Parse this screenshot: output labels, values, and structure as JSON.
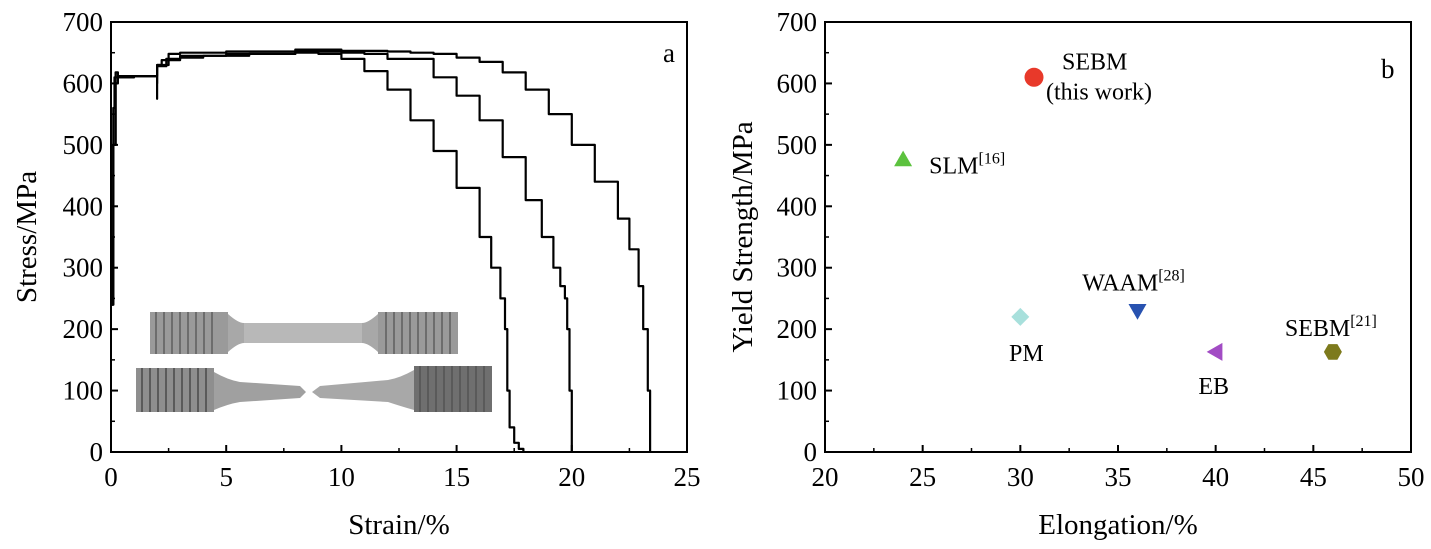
{
  "chart_data": [
    {
      "panel": "a",
      "type": "line",
      "xlabel": "Strain/%",
      "ylabel": "Stress/MPa",
      "xlim": [
        0,
        25
      ],
      "ylim": [
        0,
        700
      ],
      "xticks": [
        0,
        5,
        10,
        15,
        20,
        25
      ],
      "yticks": [
        0,
        100,
        200,
        300,
        400,
        500,
        600,
        700
      ],
      "grid": false,
      "inset_image": "tensile specimens photo: intact and fractured",
      "series": [
        {
          "x": [
            0,
            0.05,
            0.1,
            0.15,
            0.2,
            0.3,
            0.5,
            1,
            1.9,
            2.0,
            2.0,
            2.2,
            3,
            4,
            6,
            8,
            9,
            10,
            11,
            12,
            13,
            14,
            15,
            16,
            16.5,
            16.9,
            17.1,
            17.2,
            17.3,
            17.5,
            17.7,
            17.9
          ],
          "y": [
            240,
            350,
            560,
            610,
            618,
            612,
            612,
            612,
            612,
            612,
            630,
            638,
            642,
            645,
            648,
            650,
            648,
            640,
            620,
            590,
            540,
            490,
            430,
            350,
            300,
            250,
            200,
            100,
            40,
            15,
            5,
            0
          ]
        },
        {
          "x": [
            0,
            0.1,
            0.2,
            0.3,
            1,
            1.9,
            2.0,
            2.0,
            2.4,
            3,
            5,
            8,
            10,
            11,
            12,
            14,
            15,
            16,
            17,
            18,
            18.7,
            19.2,
            19.5,
            19.7,
            19.8,
            19.9,
            20.0
          ],
          "y": [
            240,
            500,
            600,
            610,
            612,
            612,
            600,
            628,
            640,
            645,
            648,
            652,
            650,
            648,
            640,
            610,
            580,
            540,
            480,
            410,
            350,
            300,
            270,
            250,
            200,
            100,
            0
          ]
        },
        {
          "x": [
            0,
            0.1,
            0.2,
            1,
            1.9,
            2.0,
            2.0,
            2.5,
            3,
            5,
            8,
            10,
            12,
            13,
            14,
            15,
            16,
            17,
            18,
            19,
            20,
            21,
            22,
            22.5,
            22.9,
            23.1,
            23.3,
            23.4
          ],
          "y": [
            240,
            500,
            610,
            612,
            612,
            575,
            630,
            648,
            650,
            652,
            655,
            653,
            652,
            650,
            648,
            642,
            635,
            618,
            590,
            550,
            500,
            440,
            380,
            330,
            270,
            200,
            100,
            0
          ]
        }
      ]
    },
    {
      "panel": "b",
      "type": "scatter",
      "xlabel": "Elongation/%",
      "ylabel": "Yield Strength/MPa",
      "xlim": [
        20,
        50
      ],
      "ylim": [
        0,
        700
      ],
      "xticks": [
        20,
        25,
        30,
        35,
        40,
        45,
        50
      ],
      "yticks": [
        0,
        100,
        200,
        300,
        400,
        500,
        600,
        700
      ],
      "grid": false,
      "points": [
        {
          "x": 30.7,
          "y": 610,
          "marker": "circle",
          "color": "#e8392a",
          "label": "SEBM",
          "label2": "(this work)",
          "ref": ""
        },
        {
          "x": 24.0,
          "y": 476,
          "marker": "triangle-up",
          "color": "#5cc23e",
          "label": "SLM",
          "ref": "[16]"
        },
        {
          "x": 30.0,
          "y": 220,
          "marker": "diamond",
          "color": "#a8e0dc",
          "label": "PM",
          "ref": ""
        },
        {
          "x": 36.0,
          "y": 230,
          "marker": "triangle-down",
          "color": "#2852b0",
          "label": "WAAM",
          "ref": "[28]"
        },
        {
          "x": 40.0,
          "y": 163,
          "marker": "triangle-left",
          "color": "#a24cc4",
          "label": "EB",
          "ref": ""
        },
        {
          "x": 46.0,
          "y": 163,
          "marker": "hexagon",
          "color": "#7d7a1c",
          "label": "SEBM",
          "ref": "[21]"
        }
      ]
    }
  ]
}
